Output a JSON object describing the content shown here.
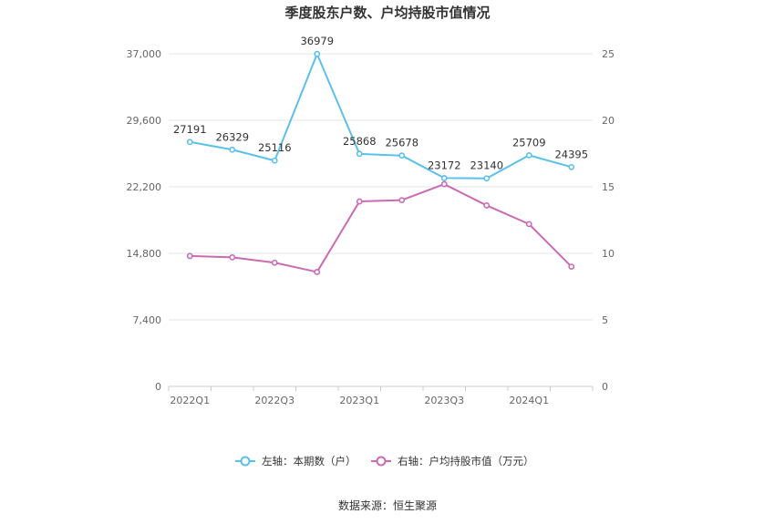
{
  "source_label": "数据来源：恒生聚源",
  "chart_data": {
    "type": "line",
    "title": "季度股东户数、户均持股市值情况",
    "x": [
      "2022Q1",
      "2022Q2",
      "2022Q3",
      "2022Q4",
      "2023Q1",
      "2023Q2",
      "2023Q3",
      "2023Q4",
      "2024Q1",
      "2024Q2"
    ],
    "x_tick_labels": [
      "2022Q1",
      "2022Q3",
      "2023Q1",
      "2023Q3",
      "2024Q1"
    ],
    "y_left": {
      "min": 0,
      "max": 37000,
      "ticks": [
        "0",
        "7,400",
        "14,800",
        "22,200",
        "29,600",
        "37,000"
      ]
    },
    "y_right": {
      "min": 0,
      "max": 25,
      "ticks": [
        "0",
        "5",
        "10",
        "15",
        "20",
        "25"
      ]
    },
    "grid": true,
    "legend_position": "bottom",
    "series": [
      {
        "name": "左轴：本期数（户）",
        "axis": "left",
        "color": "#5bc0eb",
        "values": [
          27191,
          26329,
          25116,
          36979,
          25868,
          25678,
          23172,
          23140,
          25709,
          24395
        ],
        "labels": [
          "27191",
          "26329",
          "25116",
          "36979",
          "25868",
          "25678",
          "23172",
          "23140",
          "25709",
          "24395"
        ]
      },
      {
        "name": "右轴：户均持股市值（万元）",
        "axis": "right",
        "color": "#cc6bb3",
        "values": [
          9.8,
          9.7,
          9.3,
          8.6,
          13.9,
          14.0,
          15.2,
          13.6,
          12.2,
          9.0
        ]
      }
    ]
  }
}
